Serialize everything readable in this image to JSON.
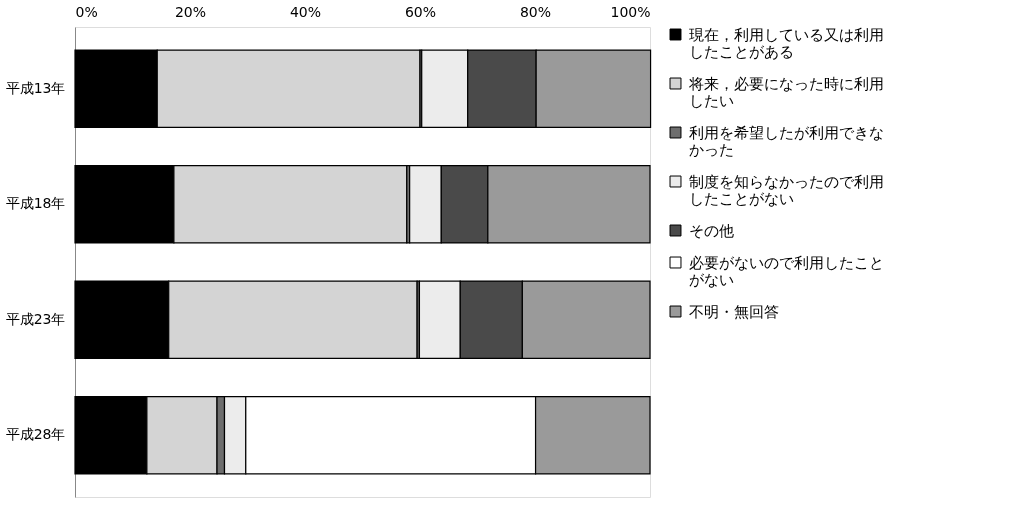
{
  "chart_data": {
    "type": "bar",
    "orientation": "horizontal",
    "stacked": true,
    "categories": [
      "平成13年",
      "平成18年",
      "平成23年",
      "平成28年"
    ],
    "series": [
      {
        "name": "現在，利用している又は利用したことがある",
        "color": "#000000",
        "values": [
          14.3,
          17.2,
          16.3,
          12.5
        ]
      },
      {
        "name": "将来，必要になった時に利用したい",
        "color": "#d4d4d4",
        "values": [
          45.7,
          40.5,
          43.2,
          12.2
        ]
      },
      {
        "name": "利用を希望したが利用できなかった",
        "color": "#6e6e6e",
        "values": [
          0.3,
          0.5,
          0.4,
          1.3
        ]
      },
      {
        "name": "制度を知らなかったので利用したことがない",
        "color": "#ececec",
        "values": [
          8.0,
          5.5,
          7.1,
          3.7
        ]
      },
      {
        "name": "その他",
        "color": "#4a4a4a",
        "values": [
          11.9,
          8.1,
          10.8,
          null
        ]
      },
      {
        "name": "必要がないので利用したことがない",
        "color": "#ffffff",
        "values": [
          null,
          null,
          null,
          50.4
        ]
      },
      {
        "name": "不明・無回答",
        "color": "#9a9a9a",
        "values": [
          19.9,
          28.2,
          22.2,
          19.9
        ]
      }
    ],
    "xlim": [
      0,
      100
    ],
    "xticks": [
      {
        "value": 0,
        "label": "0%"
      },
      {
        "value": 20,
        "label": "20%"
      },
      {
        "value": 40,
        "label": "40%"
      },
      {
        "value": 60,
        "label": "60%"
      },
      {
        "value": 80,
        "label": "80%"
      },
      {
        "value": 100,
        "label": "100%"
      }
    ],
    "grid": false,
    "legend": "right"
  }
}
